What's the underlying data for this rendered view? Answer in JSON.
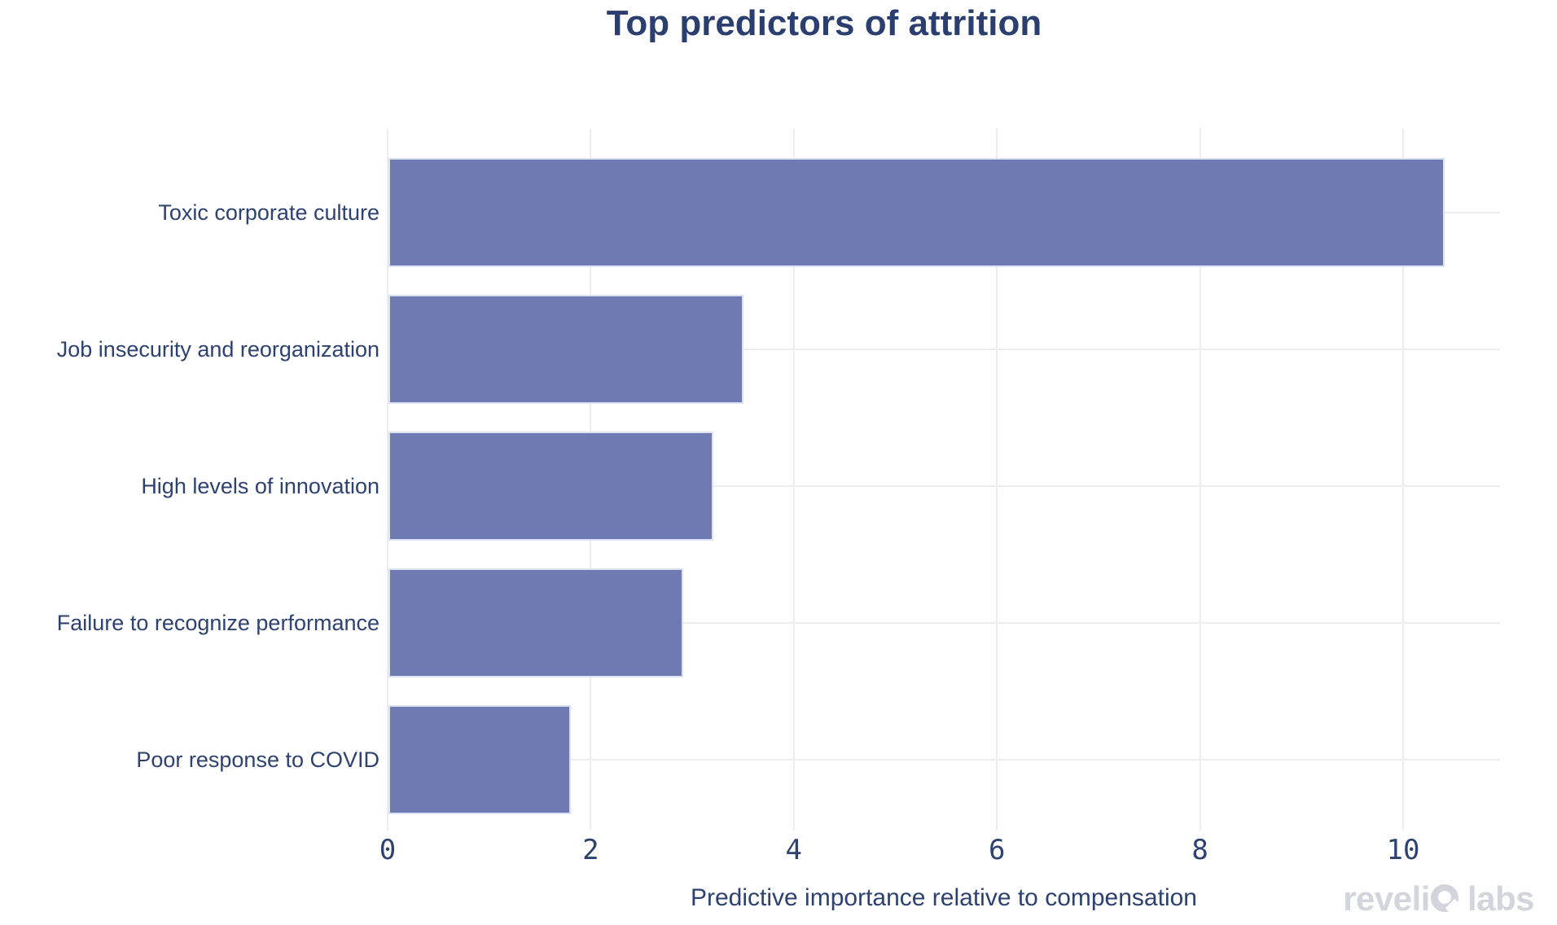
{
  "page": {
    "background": "#ffffff"
  },
  "chart_data": {
    "type": "bar",
    "orientation": "horizontal",
    "title": "Top predictors of attrition",
    "categories": [
      "Toxic corporate culture",
      "Job insecurity and reorganization",
      "High levels of innovation",
      "Failure to recognize performance",
      "Poor response to COVID"
    ],
    "values": [
      10.4,
      3.5,
      3.2,
      2.9,
      1.8
    ],
    "xlabel": "Predictive importance relative to compensation",
    "ylabel": "",
    "xticks": [
      0,
      2,
      4,
      6,
      8,
      10
    ],
    "xlim": [
      0,
      11
    ],
    "grid": "on",
    "legend": "none",
    "colors": {
      "bar_fill": "#6e7ab1",
      "bar_border": "#dde2f3",
      "gridline": "#ebedf2",
      "title_text": "#2a3f6f",
      "label_text": "#2d4271",
      "tick_text": "#2d4271",
      "logo_gray": "#d2d6dc"
    }
  },
  "branding": {
    "logo_text": "revelio labs",
    "logo_part1": "reveli",
    "logo_part2": "labs"
  }
}
